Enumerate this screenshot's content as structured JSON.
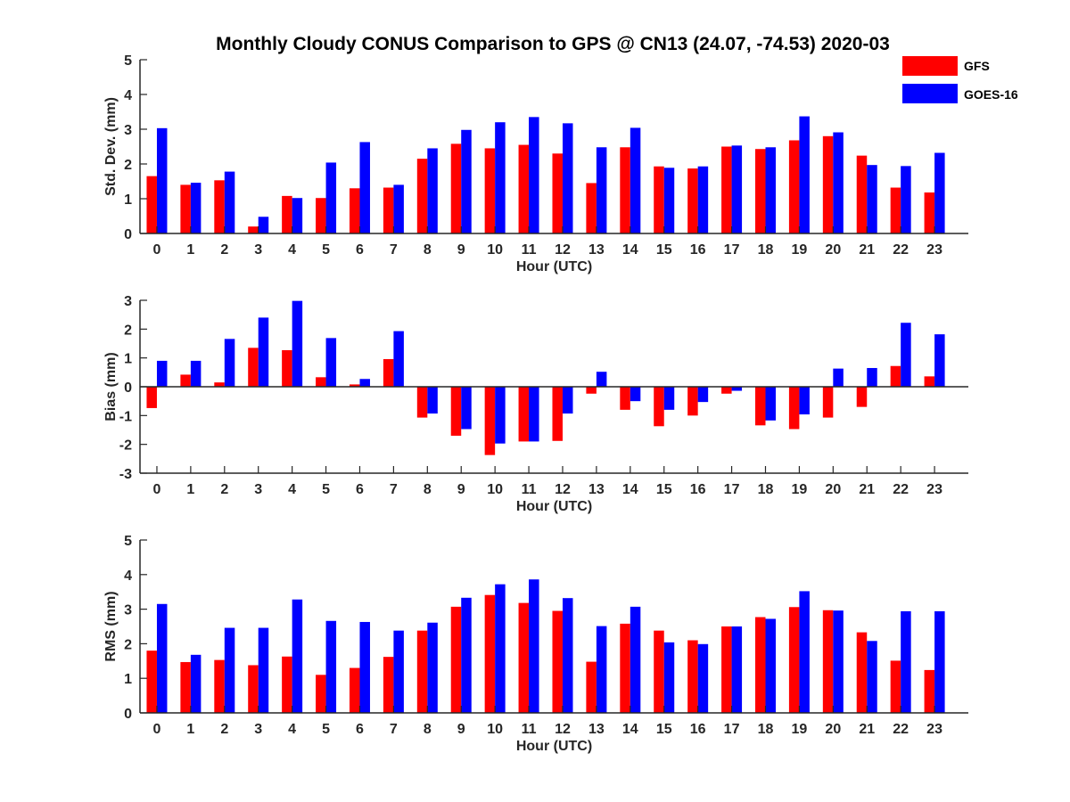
{
  "chart_data": {
    "title": "Monthly Cloudy CONUS Comparison to GPS @ CN13 (24.07, -74.53) 2020-03",
    "legend": {
      "placement": "top-right",
      "items": [
        {
          "label": "GFS",
          "color": "#ff0000"
        },
        {
          "label": "GOES-16",
          "color": "#0000ff"
        }
      ]
    },
    "panels": [
      {
        "type": "bar",
        "xlabel": "Hour (UTC)",
        "ylabel": "Std. Dev. (mm)",
        "ylim": [
          0,
          5
        ],
        "yticks": [
          "0",
          "1",
          "2",
          "3",
          "4",
          "5"
        ],
        "categories": [
          "0",
          "1",
          "2",
          "3",
          "4",
          "5",
          "6",
          "7",
          "8",
          "9",
          "10",
          "11",
          "12",
          "13",
          "14",
          "15",
          "16",
          "17",
          "18",
          "19",
          "20",
          "21",
          "22",
          "23"
        ],
        "series": [
          {
            "name": "GFS",
            "color": "#ff0000",
            "values": [
              1.65,
              1.4,
              1.53,
              0.2,
              1.08,
              1.02,
              1.3,
              1.32,
              2.15,
              2.58,
              2.45,
              2.55,
              2.3,
              1.45,
              2.48,
              1.93,
              1.87,
              2.5,
              2.43,
              2.68,
              2.8,
              2.24,
              1.32,
              1.18
            ]
          },
          {
            "name": "GOES-16",
            "color": "#0000ff",
            "values": [
              3.03,
              1.46,
              1.78,
              0.48,
              1.02,
              2.04,
              2.63,
              1.4,
              2.45,
              2.98,
              3.2,
              3.35,
              3.17,
              2.48,
              3.04,
              1.89,
              1.93,
              2.53,
              2.48,
              3.37,
              2.91,
              1.97,
              1.94,
              2.32
            ]
          }
        ]
      },
      {
        "type": "bar",
        "xlabel": "Hour (UTC)",
        "ylabel": "Bias (mm)",
        "ylim": [
          -3,
          3
        ],
        "yticks": [
          "-3",
          "-2",
          "-1",
          "0",
          "1",
          "2",
          "3"
        ],
        "categories": [
          "0",
          "1",
          "2",
          "3",
          "4",
          "5",
          "6",
          "7",
          "8",
          "9",
          "10",
          "11",
          "12",
          "13",
          "14",
          "15",
          "16",
          "17",
          "18",
          "19",
          "20",
          "21",
          "22",
          "23"
        ],
        "series": [
          {
            "name": "GFS",
            "color": "#ff0000",
            "values": [
              -0.74,
              0.42,
              0.15,
              1.35,
              1.27,
              0.33,
              0.08,
              0.96,
              -1.07,
              -1.7,
              -2.37,
              -1.9,
              -1.88,
              -0.24,
              -0.8,
              -1.37,
              -1.0,
              -0.24,
              -1.34,
              -1.47,
              -1.07,
              -0.7,
              0.72,
              0.36
            ]
          },
          {
            "name": "GOES-16",
            "color": "#0000ff",
            "values": [
              0.9,
              0.9,
              1.66,
              2.4,
              2.98,
              1.69,
              0.27,
              1.93,
              -0.93,
              -1.47,
              -1.97,
              -1.9,
              -0.93,
              0.52,
              -0.5,
              -0.8,
              -0.53,
              -0.14,
              -1.17,
              -0.96,
              0.63,
              0.65,
              2.22,
              1.82
            ]
          }
        ]
      },
      {
        "type": "bar",
        "xlabel": "Hour (UTC)",
        "ylabel": "RMS (mm)",
        "ylim": [
          0,
          5
        ],
        "yticks": [
          "0",
          "1",
          "2",
          "3",
          "4",
          "5"
        ],
        "categories": [
          "0",
          "1",
          "2",
          "3",
          "4",
          "5",
          "6",
          "7",
          "8",
          "9",
          "10",
          "11",
          "12",
          "13",
          "14",
          "15",
          "16",
          "17",
          "18",
          "19",
          "20",
          "21",
          "22",
          "23"
        ],
        "series": [
          {
            "name": "GFS",
            "color": "#ff0000",
            "values": [
              1.8,
              1.47,
              1.53,
              1.38,
              1.63,
              1.1,
              1.3,
              1.62,
              2.38,
              3.07,
              3.41,
              3.18,
              2.95,
              1.48,
              2.58,
              2.38,
              2.1,
              2.5,
              2.77,
              3.06,
              2.97,
              2.33,
              1.51,
              1.24
            ]
          },
          {
            "name": "GOES-16",
            "color": "#0000ff",
            "values": [
              3.15,
              1.68,
              2.46,
              2.46,
              3.28,
              2.66,
              2.63,
              2.38,
              2.61,
              3.33,
              3.72,
              3.86,
              3.32,
              2.51,
              3.07,
              2.04,
              1.99,
              2.5,
              2.72,
              3.52,
              2.96,
              2.08,
              2.94,
              2.94
            ]
          }
        ]
      }
    ]
  }
}
